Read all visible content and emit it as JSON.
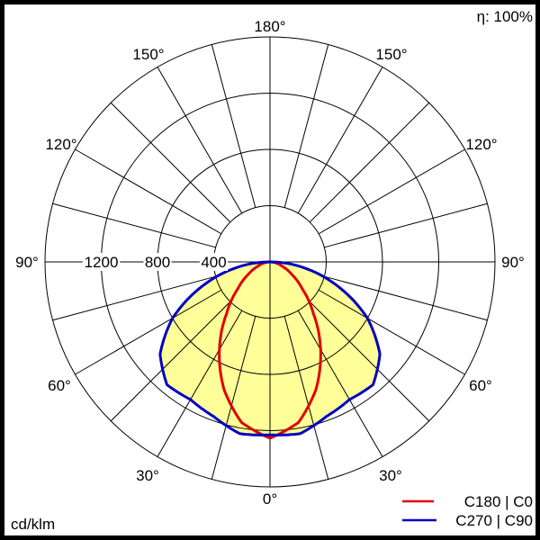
{
  "chart_data": {
    "type": "polar",
    "title": "",
    "unit_label": "cd/klm",
    "efficiency_label": "η: 100%",
    "radial_ticks": [
      400,
      800,
      1200,
      1600
    ],
    "radial_tick_labels": [
      "400",
      "800",
      "1200"
    ],
    "rmax": 1600,
    "angle_labels": {
      "top": "180°",
      "bottom": "0°",
      "left": [
        "150°",
        "120°",
        "90°",
        "60°",
        "30°"
      ],
      "right": [
        "150°",
        "120°",
        "90°",
        "60°",
        "30°"
      ]
    },
    "angle_step_deg": 15,
    "legend": [
      {
        "label": "C180 | C0",
        "color": "#e00000"
      },
      {
        "label": "C270 | C90",
        "color": "#0000c0"
      }
    ],
    "series": [
      {
        "name": "C180 | C0",
        "color": "#e00000",
        "gamma": [
          0,
          10,
          20,
          30,
          40,
          50,
          60,
          70,
          80,
          90
        ],
        "values": [
          1254,
          1160,
          960,
          720,
          480,
          300,
          180,
          95,
          40,
          0
        ]
      },
      {
        "name": "C270 | C90",
        "color": "#0000c0",
        "gamma": [
          0,
          10,
          20,
          30,
          40,
          50,
          60,
          70,
          80,
          90
        ],
        "values": [
          1230,
          1240,
          1170,
          1130,
          1140,
          1020,
          800,
          520,
          250,
          0
        ]
      }
    ],
    "fill_color": "#ffff99"
  }
}
